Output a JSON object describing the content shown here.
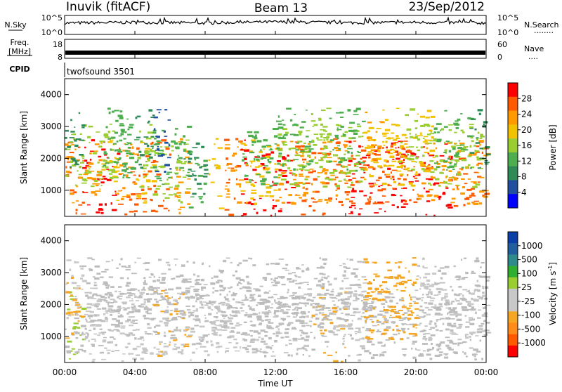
{
  "header": {
    "station": "Inuvik (fitACF)",
    "beam": "Beam 13",
    "date": "23/Sep/2012"
  },
  "summary": {
    "nsky_label": "N.Sky",
    "nsearch_label": "N.Search",
    "nsearch_dots": "........",
    "noise_ticks": [
      "10^5",
      "10^0"
    ],
    "freq_label_line1": "Freq.",
    "freq_label_line2": "[MHz]",
    "freq_ticks": [
      "18",
      "8"
    ],
    "nave_label": "Nave",
    "nave_dots": "....",
    "nave_ticks": [
      "60",
      "0"
    ],
    "cpid_label": "CPID",
    "cpid_value": "twofsound 3501"
  },
  "colors": {
    "power_scale": [
      "#0000ff",
      "#1f4f9e",
      "#2e8b57",
      "#4cae4c",
      "#9acd32",
      "#f2c200",
      "#ff9900",
      "#ff5a00",
      "#ff0000"
    ],
    "velocity_scale": [
      "#ff0000",
      "#ff5a00",
      "#ff8c1a",
      "#f5a623",
      "#c8c8c8",
      "#c8c8c8",
      "#9acd32",
      "#2fae2f",
      "#2e8b8b",
      "#1f5fa0",
      "#0b3fa8"
    ],
    "ground_scatter": "#bdbdbd"
  },
  "chart_data": [
    {
      "type": "line",
      "title": "Inuvik (fitACF) Beam 13 23/Sep/2012",
      "panel": "noise",
      "ylabel": "N.Sky",
      "ylabel_right": "N.Search",
      "scale": "log",
      "ylim": [
        1,
        100000
      ],
      "x": [
        "00:00",
        "04:00",
        "08:00",
        "12:00",
        "16:00",
        "20:00",
        "00:00"
      ],
      "series": [
        {
          "name": "N.Sky",
          "values": [
            1000,
            1500,
            1000,
            2000,
            1200,
            1500,
            1000
          ]
        }
      ]
    },
    {
      "type": "line",
      "panel": "frequency",
      "ylabel": "Freq. [MHz]",
      "ylabel_right": "Nave",
      "ylim": [
        8,
        18
      ],
      "ylim_right": [
        0,
        60
      ],
      "x": [
        "00:00",
        "04:00",
        "08:00",
        "12:00",
        "16:00",
        "20:00",
        "00:00"
      ],
      "series": [
        {
          "name": "Freq. [MHz]",
          "values": [
            11,
            11,
            11,
            11,
            11,
            11,
            11
          ]
        }
      ]
    },
    {
      "type": "heatmap",
      "panel": "power",
      "ylabel": "Slant Range [km]",
      "xlabel": "Time UT",
      "colorbar_label": "Power [dB]",
      "colorbar_ticks": [
        4,
        8,
        12,
        16,
        20,
        24,
        28
      ],
      "clim": [
        0,
        30
      ],
      "yticks": [
        1000,
        2000,
        3000,
        4000
      ],
      "ylim": [
        180,
        4500
      ],
      "xticks": [
        "00:00",
        "04:00",
        "08:00",
        "12:00",
        "16:00",
        "20:00",
        "00:00"
      ],
      "xlim": [
        0,
        24
      ],
      "rows": [
        {
          "range_km": 1100,
          "values": [
            26,
            27,
            27,
            26,
            25,
            24,
            22,
            12,
            18,
            26,
            27,
            27,
            27,
            26,
            25,
            26,
            27,
            27,
            28,
            28,
            27,
            27,
            26,
            26
          ]
        },
        {
          "range_km": 1600,
          "values": [
            22,
            20,
            18,
            20,
            18,
            16,
            14,
            8,
            0,
            20,
            18,
            18,
            20,
            20,
            22,
            22,
            24,
            24,
            24,
            24,
            22,
            22,
            22,
            20
          ]
        },
        {
          "range_km": 2100,
          "values": [
            14,
            16,
            14,
            12,
            14,
            12,
            10,
            0,
            0,
            0,
            12,
            12,
            14,
            14,
            14,
            16,
            16,
            18,
            18,
            18,
            16,
            16,
            16,
            14
          ]
        },
        {
          "range_km": 2600,
          "values": [
            8,
            0,
            10,
            12,
            8,
            6,
            0,
            0,
            0,
            0,
            0,
            0,
            10,
            12,
            14,
            10,
            12,
            20,
            18,
            16,
            18,
            12,
            10,
            8
          ]
        }
      ]
    },
    {
      "type": "heatmap",
      "panel": "velocity",
      "ylabel": "Slant Range [km]",
      "xlabel": "Time UT",
      "colorbar_label": "Velocity [m s^-1]",
      "colorbar_ticks": [
        "1000",
        "500",
        "100",
        "25",
        "-25",
        "-100",
        "-500",
        "-1000"
      ],
      "clim": [
        -1000,
        1000
      ],
      "yticks": [
        1000,
        2000,
        3000,
        4000
      ],
      "ylim": [
        180,
        4500
      ],
      "xticks": [
        "00:00",
        "04:00",
        "08:00",
        "12:00",
        "16:00",
        "20:00",
        "00:00"
      ],
      "xlim": [
        0,
        24
      ],
      "rows": [
        {
          "range_km": 1000,
          "values": [
            100,
            80,
            60,
            -200,
            -250,
            -300,
            -300,
            -250,
            -200,
            -150,
            -100,
            -50,
            -200,
            -250,
            -300,
            -300,
            -250,
            0,
            0,
            0,
            0,
            0,
            0,
            0
          ]
        },
        {
          "range_km": 1400,
          "values": [
            0,
            0,
            0,
            -150,
            -200,
            -250,
            -200,
            0,
            -100,
            -150,
            0,
            0,
            0,
            0,
            0,
            0,
            0,
            0,
            0,
            0,
            0,
            0,
            0,
            0
          ]
        },
        {
          "range_km": 1900,
          "values": [
            -300,
            -250,
            0,
            0,
            0,
            0,
            0,
            0,
            0,
            0,
            0,
            0,
            0,
            0,
            0,
            -200,
            -250,
            -300,
            -300,
            -300,
            -250,
            -250,
            -200,
            -200
          ]
        },
        {
          "range_km": 2500,
          "values": [
            -200,
            0,
            0,
            0,
            0,
            0,
            0,
            0,
            0,
            0,
            0,
            0,
            0,
            0,
            0,
            0,
            0,
            -300,
            -300,
            -300,
            -250,
            0,
            0,
            0
          ]
        }
      ]
    }
  ],
  "axis": {
    "xlabel": "Time UT",
    "xticks": [
      "00:00",
      "04:00",
      "08:00",
      "12:00",
      "16:00",
      "20:00",
      "00:00"
    ],
    "yticks": [
      "1000",
      "2000",
      "3000",
      "4000"
    ],
    "ylabel": "Slant Range [km]",
    "power_label": "Power [dB]",
    "power_ticks": [
      "28",
      "24",
      "20",
      "16",
      "12",
      "8",
      "4"
    ],
    "velocity_label": "Velocity [m s",
    "velocity_sup": "-1",
    "velocity_close": "]",
    "velocity_ticks": [
      "1000",
      "500",
      "100",
      "25",
      "-25",
      "-100",
      "-500",
      "-1000"
    ]
  }
}
